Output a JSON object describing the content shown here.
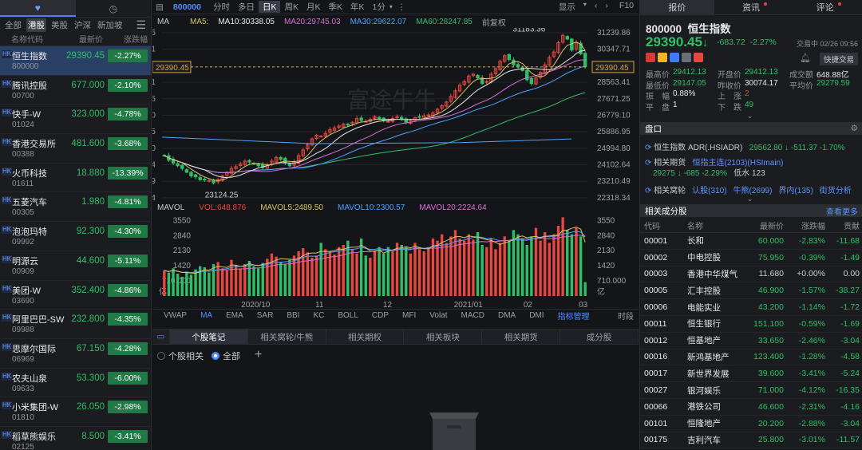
{
  "left": {
    "tabs": [
      "heart-icon",
      "clock-icon"
    ],
    "markets": [
      "全部",
      "港股",
      "美股",
      "沪深",
      "新加坡"
    ],
    "headers": {
      "name": "名称代码",
      "price": "最新价",
      "pct": "涨跌幅"
    },
    "stocks": [
      {
        "name": "恒生指数",
        "code": "800000",
        "price": "29390.45",
        "pct": "-2.27%"
      },
      {
        "name": "腾讯控股",
        "code": "00700",
        "price": "677.000",
        "pct": "-2.10%"
      },
      {
        "name": "快手-W",
        "code": "01024",
        "price": "323.000",
        "pct": "-4.78%"
      },
      {
        "name": "香港交易所",
        "code": "00388",
        "price": "481.600",
        "pct": "-3.68%"
      },
      {
        "name": "火币科技",
        "code": "01611",
        "price": "18.880",
        "pct": "-13.39%"
      },
      {
        "name": "五菱汽车",
        "code": "00305",
        "price": "1.980",
        "pct": "-4.81%"
      },
      {
        "name": "泡泡玛特",
        "code": "09992",
        "price": "92.300",
        "pct": "-4.30%"
      },
      {
        "name": "明源云",
        "code": "00909",
        "price": "44.600",
        "pct": "-5.11%"
      },
      {
        "name": "美团-W",
        "code": "03690",
        "price": "352.400",
        "pct": "-4.86%"
      },
      {
        "name": "阿里巴巴-SW",
        "code": "09988",
        "price": "232.800",
        "pct": "-4.35%"
      },
      {
        "name": "思摩尔国际",
        "code": "06969",
        "price": "67.150",
        "pct": "-4.28%"
      },
      {
        "name": "农夫山泉",
        "code": "09633",
        "price": "53.300",
        "pct": "-6.00%"
      },
      {
        "name": "小米集团-W",
        "code": "01810",
        "price": "26.050",
        "pct": "-2.98%"
      },
      {
        "name": "稻草熊娱乐",
        "code": "02125",
        "price": "8.500",
        "pct": "-3.41%"
      }
    ]
  },
  "center": {
    "code": "800000",
    "periods": [
      "分时",
      "多日",
      "日K",
      "周K",
      "月K",
      "季K",
      "年K",
      "1分"
    ],
    "active_period": "日K",
    "toolbar_right": [
      "显示",
      "F10"
    ],
    "ma_label": "MA",
    "ma5": "MA5:",
    "ma10": "MA10:30338.05",
    "ma20": "MA20:29745.03",
    "ma30": "MA30:29622.07",
    "ma60": "MA60:28247.85",
    "fq": "前复权",
    "price_ticks": [
      "31239.86",
      "30347.71",
      "29390.45",
      "28563.41",
      "27671.25",
      "26779.10",
      "25886.95",
      "24994.80",
      "24102.64",
      "23210.49",
      "22318.34"
    ],
    "hi_label": "31183.36",
    "lo_label": "23124.25",
    "vol_label": "MAVOL",
    "vol": "VOL:648.876",
    "mavol5": "MAVOL5:2489.50",
    "mavol10": "MAVOL10:2300.57",
    "mavol20": "MAVOL20:2224.64",
    "vol_ticks": [
      "3550",
      "2840",
      "2130",
      "1420",
      "710.000"
    ],
    "vol_unit": "亿",
    "dates": [
      "2020/10",
      "11",
      "12",
      "2021/01",
      "02",
      "03"
    ],
    "indicators": [
      "VWAP",
      "MA",
      "EMA",
      "SAR",
      "BBI",
      "KC",
      "BOLL",
      "CDP",
      "MFI",
      "Volat",
      "MACD",
      "DMA",
      "DMI",
      "指标管理",
      "时段"
    ],
    "tabs": [
      "个股笔记",
      "相关窝轮/牛熊",
      "相关期权",
      "相关板块",
      "相关期货",
      "成分股"
    ],
    "filter": [
      "个股相关",
      "全部"
    ],
    "watermark": "富途牛牛",
    "colors": {
      "up": "#e8473f",
      "down": "#2fbf66",
      "ma5": "#d9c26a",
      "ma10": "#e8e9ec",
      "ma20": "#d66fd6",
      "ma30": "#4da3ff",
      "ma60": "#33c06b"
    }
  },
  "right": {
    "tabs": [
      "报价",
      "资讯",
      "评论"
    ],
    "code": "800000",
    "name": "恒生指数",
    "price": "29390.45",
    "arrow": "↓",
    "change": "-683.72",
    "change_pct": "-2.27%",
    "time": "交易中 02/26 09:56",
    "quick": "快捷交易",
    "stats": [
      [
        {
          "l": "最高价",
          "v": "29412.13",
          "c": "dn"
        },
        {
          "l": "开盘价",
          "v": "29412.13",
          "c": "dn"
        },
        {
          "l": "成交额",
          "v": "648.88亿",
          "c": "w"
        }
      ],
      [
        {
          "l": "最低价",
          "v": "29147.05",
          "c": "dn"
        },
        {
          "l": "昨收价",
          "v": "30074.17",
          "c": "w"
        },
        {
          "l": "平均价",
          "v": "29279.59",
          "c": "dn"
        }
      ],
      [
        {
          "l": "振　幅",
          "v": "0.88%",
          "c": "w"
        },
        {
          "l": "上　涨",
          "v": "2",
          "c": "up"
        },
        {
          "l": "",
          "v": "",
          "c": "w"
        }
      ],
      [
        {
          "l": "平　盘",
          "v": "1",
          "c": "w"
        },
        {
          "l": "下　跌",
          "v": "49",
          "c": "dn"
        },
        {
          "l": "",
          "v": "",
          "c": "w"
        }
      ]
    ],
    "pankou": "盘口",
    "adr_label": "恒生指数 ADR(.HSIADR)",
    "adr_value": "29562.80 ↓ -511.37 -1.70%",
    "fut_label": "相关期货",
    "fut_name": "恒指主连(2103)(HSImain)",
    "fut_value": "29275 ↓ -685 -2.29%",
    "fut_extra": "低水 123",
    "war_label": "相关窝轮",
    "war_items": [
      "认股(310)",
      "牛熊(2699)",
      "界内(135)",
      "街货分析"
    ],
    "cons_title": "相关成分股",
    "cons_more": "查看更多",
    "cons_headers": [
      "代码",
      "名称",
      "最新价",
      "涨跌幅",
      "贡献"
    ],
    "cons": [
      [
        "00001",
        "长和",
        "60.000",
        "-2.83%",
        "-11.68"
      ],
      [
        "00002",
        "中电控股",
        "75.950",
        "-0.39%",
        "-1.49"
      ],
      [
        "00003",
        "香港中华煤气",
        "11.680",
        "+0.00%",
        "0.00"
      ],
      [
        "00005",
        "汇丰控股",
        "46.900",
        "-1.57%",
        "-38.27"
      ],
      [
        "00006",
        "电能实业",
        "43.200",
        "-1.14%",
        "-1.72"
      ],
      [
        "00011",
        "恒生银行",
        "151.100",
        "-0.59%",
        "-1.69"
      ],
      [
        "00012",
        "恒基地产",
        "33.650",
        "-2.46%",
        "-3.04"
      ],
      [
        "00016",
        "新鸿基地产",
        "123.400",
        "-1.28%",
        "-4.58"
      ],
      [
        "00017",
        "新世界发展",
        "39.600",
        "-3.41%",
        "-5.24"
      ],
      [
        "00027",
        "银河娱乐",
        "71.000",
        "-4.12%",
        "-16.35"
      ],
      [
        "00066",
        "港铁公司",
        "46.600",
        "-2.31%",
        "-4.16"
      ],
      [
        "00101",
        "恒隆地产",
        "20.200",
        "-2.88%",
        "-3.04"
      ],
      [
        "00175",
        "吉利汽车",
        "25.800",
        "-3.01%",
        "-11.57"
      ]
    ]
  },
  "chart_data": [
    {
      "type": "candlestick",
      "title": "800000 恒生指数 日K",
      "y_ticks": [
        22318.34,
        23210.49,
        24102.64,
        24994.8,
        25886.95,
        26779.1,
        27671.25,
        28563.41,
        29390.45,
        30347.71,
        31239.86
      ],
      "ylim": [
        22100,
        31500
      ],
      "x_ticks": [
        "2020/10",
        "11",
        "12",
        "2021/01",
        "02",
        "03"
      ],
      "annotations": [
        {
          "text": "31183.36",
          "type": "high"
        },
        {
          "text": "23124.25",
          "type": "low"
        }
      ],
      "last": 29390.45,
      "closes": [
        24600,
        24350,
        24200,
        24050,
        23900,
        23700,
        23500,
        23450,
        23300,
        23280,
        23250,
        23124,
        23300,
        23500,
        23700,
        23900,
        24000,
        24150,
        24300,
        24250,
        24150,
        24050,
        23950,
        24100,
        24300,
        24500,
        24400,
        24200,
        24050,
        24250,
        24600,
        24900,
        25200,
        25500,
        25700,
        25650,
        25800,
        26000,
        26100,
        26200,
        26300,
        26250,
        26400,
        26600,
        26500,
        26450,
        26550,
        26700,
        26600,
        26500,
        26450,
        26600,
        26700,
        26550,
        26400,
        26500,
        26650,
        26700,
        26750,
        26800,
        26900,
        27100,
        27300,
        27500,
        27800,
        28100,
        28400,
        28600,
        28900,
        29000,
        28800,
        28500,
        28600,
        29000,
        29300,
        29700,
        30000,
        29800,
        29500,
        29400,
        29200,
        28700,
        28500,
        28800,
        29100,
        29500,
        29900,
        30200,
        30700,
        31100,
        30900,
        30300,
        30700,
        30100,
        29400
      ]
    },
    {
      "type": "bar",
      "title": "VOL",
      "y_ticks": [
        710,
        1420,
        2130,
        2840,
        3550
      ],
      "unit": "亿",
      "values": [
        1200,
        1100,
        1300,
        1050,
        900,
        1150,
        1000,
        1250,
        1400,
        1350,
        1100,
        1500,
        1600,
        1300,
        1200,
        1700,
        1450,
        1300,
        1500,
        1650,
        1400,
        1300,
        1550,
        1750,
        2000,
        1850,
        1600,
        1500,
        1700,
        1900,
        2100,
        2250,
        2050,
        1800,
        1900,
        2500,
        2200,
        2100,
        1950,
        2300,
        2400,
        2600,
        2200,
        2000,
        2700,
        1900,
        1800,
        2100,
        2300,
        2000,
        2300,
        2100,
        2500,
        2400,
        2300,
        2000,
        2500,
        2200,
        2100,
        2300,
        2700,
        2600,
        2900,
        2500,
        2800,
        3100,
        2700,
        2600,
        2900,
        2650,
        3000,
        2400,
        2300,
        2700,
        2200,
        2500,
        2800,
        2600,
        3100,
        2900,
        2700,
        2400,
        2800,
        3200,
        2600,
        3000,
        2500,
        2900,
        3300,
        3700,
        3100,
        2900,
        3200,
        2800,
        650
      ]
    }
  ]
}
